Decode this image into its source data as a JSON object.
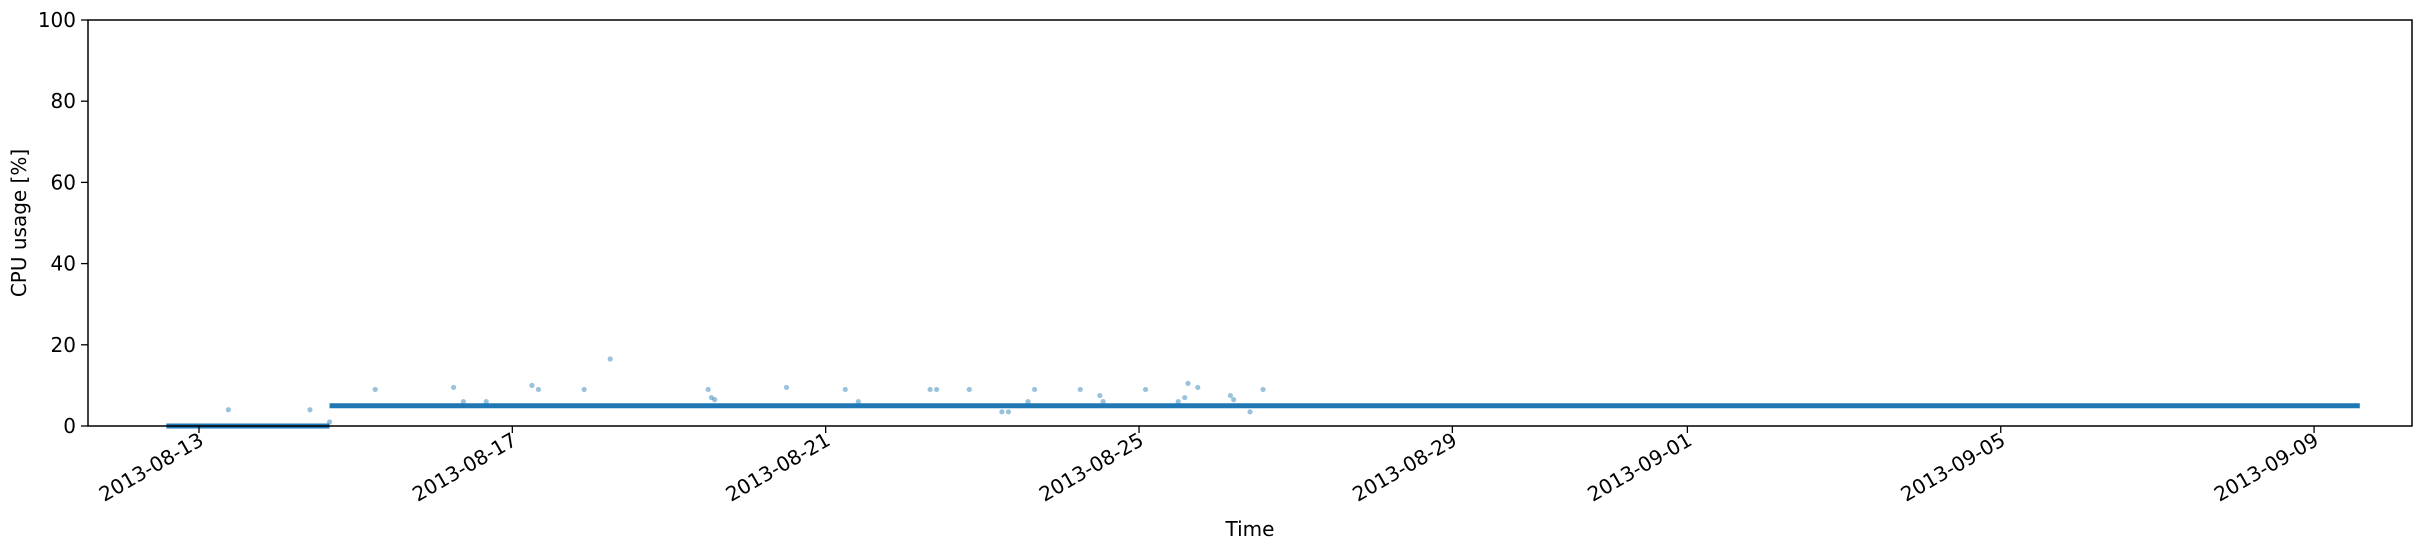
{
  "chart_data": {
    "type": "scatter",
    "title": "",
    "xlabel": "Time",
    "ylabel": "CPU usage [%]",
    "ylim": [
      0,
      100
    ],
    "xlim": [
      "2013-08-11T14:00",
      "2013-09-10T06:00"
    ],
    "yticks": [
      0,
      20,
      40,
      60,
      80,
      100
    ],
    "xticks": [
      "2013-08-13",
      "2013-08-17",
      "2013-08-21",
      "2013-08-25",
      "2013-08-29",
      "2013-09-01",
      "2013-09-05",
      "2013-09-09"
    ],
    "grid": false,
    "colors": {
      "series": "#1f77b4",
      "axes": "#000000"
    },
    "series": [
      {
        "segments": [
          {
            "x": [
              "2013-08-12T14:00",
              "2013-08-14T16:00"
            ],
            "y": [
              0,
              0
            ]
          },
          {
            "x": [
              "2013-08-14T16:00",
              "2013-09-09T14:00"
            ],
            "y": [
              5,
              5
            ]
          }
        ],
        "points": [
          {
            "x": "2013-08-13T09:00",
            "y": 4
          },
          {
            "x": "2013-08-14T10:00",
            "y": 4
          },
          {
            "x": "2013-08-14T16:00",
            "y": 1
          },
          {
            "x": "2013-08-15T06:00",
            "y": 9
          },
          {
            "x": "2013-08-16T06:00",
            "y": 9.5
          },
          {
            "x": "2013-08-16T09:00",
            "y": 6
          },
          {
            "x": "2013-08-16T16:00",
            "y": 6
          },
          {
            "x": "2013-08-17T06:00",
            "y": 10
          },
          {
            "x": "2013-08-17T08:00",
            "y": 9
          },
          {
            "x": "2013-08-17T22:00",
            "y": 9
          },
          {
            "x": "2013-08-18T06:00",
            "y": 16.5
          },
          {
            "x": "2013-08-19T12:00",
            "y": 9
          },
          {
            "x": "2013-08-19T13:00",
            "y": 7
          },
          {
            "x": "2013-08-19T14:00",
            "y": 6.5
          },
          {
            "x": "2013-08-20T12:00",
            "y": 9.5
          },
          {
            "x": "2013-08-21T06:00",
            "y": 9
          },
          {
            "x": "2013-08-21T10:00",
            "y": 6
          },
          {
            "x": "2013-08-22T08:00",
            "y": 9
          },
          {
            "x": "2013-08-22T10:00",
            "y": 9
          },
          {
            "x": "2013-08-22T20:00",
            "y": 9
          },
          {
            "x": "2013-08-23T06:00",
            "y": 3.5
          },
          {
            "x": "2013-08-23T08:00",
            "y": 3.5
          },
          {
            "x": "2013-08-23T14:00",
            "y": 6
          },
          {
            "x": "2013-08-23T16:00",
            "y": 9
          },
          {
            "x": "2013-08-24T06:00",
            "y": 9
          },
          {
            "x": "2013-08-24T12:00",
            "y": 7.5
          },
          {
            "x": "2013-08-24T13:00",
            "y": 6
          },
          {
            "x": "2013-08-25T02:00",
            "y": 9
          },
          {
            "x": "2013-08-25T12:00",
            "y": 6
          },
          {
            "x": "2013-08-25T14:00",
            "y": 7
          },
          {
            "x": "2013-08-25T15:00",
            "y": 10.5
          },
          {
            "x": "2013-08-25T18:00",
            "y": 9.5
          },
          {
            "x": "2013-08-26T04:00",
            "y": 7.5
          },
          {
            "x": "2013-08-26T05:00",
            "y": 6.5
          },
          {
            "x": "2013-08-26T10:00",
            "y": 3.5
          },
          {
            "x": "2013-08-26T14:00",
            "y": 9
          }
        ]
      }
    ]
  }
}
